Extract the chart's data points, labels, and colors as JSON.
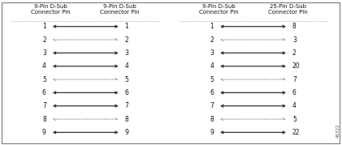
{
  "left_diagram": {
    "title_left": "9-Pin D-Sub\nConnector Pin",
    "title_right": "9-Pin D-Sub\nConnector Pin",
    "pins_left": [
      1,
      2,
      3,
      4,
      5,
      6,
      7,
      8,
      9
    ],
    "pins_right": [
      1,
      2,
      3,
      4,
      5,
      6,
      7,
      8,
      9
    ],
    "line_styles": [
      "solid",
      "light",
      "solid",
      "solid",
      "light",
      "solid",
      "solid",
      "light",
      "solid"
    ],
    "line_colors": [
      "#333333",
      "#aaaaaa",
      "#333333",
      "#333333",
      "#aaaaaa",
      "#333333",
      "#333333",
      "#aaaaaa",
      "#333333"
    ]
  },
  "right_diagram": {
    "title_left": "9-Pin D-Sub\nConnector Pin",
    "title_right": "25-Pin D-Sub\nConnector Pin",
    "pins_left": [
      1,
      2,
      3,
      4,
      5,
      6,
      7,
      8,
      9
    ],
    "pins_right": [
      8,
      3,
      2,
      20,
      7,
      6,
      4,
      5,
      22
    ],
    "line_styles": [
      "solid",
      "light",
      "solid",
      "solid",
      "light",
      "solid",
      "solid",
      "light",
      "solid"
    ],
    "line_colors": [
      "#333333",
      "#aaaaaa",
      "#333333",
      "#333333",
      "#aaaaaa",
      "#333333",
      "#333333",
      "#aaaaaa",
      "#333333"
    ]
  },
  "bg_color": "#ffffff",
  "text_color": "#111111",
  "title_fontsize": 5.0,
  "pin_fontsize": 5.5,
  "figure_label": "45322",
  "divider_color": "#999999"
}
